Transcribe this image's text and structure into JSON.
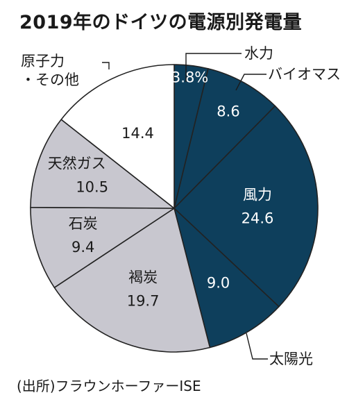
{
  "title": "2019年のドイツの電源別発電量",
  "source": "(出所)フラウンホーファーISE",
  "colors": {
    "renewable": "#0e3f5c",
    "fossil": "#c8c7cf",
    "nuclear": "#ffffff",
    "outline": "#222222"
  },
  "chart_data": {
    "type": "pie",
    "unit": "%",
    "start_angle": 0,
    "direction": "clockwise",
    "slices": [
      {
        "label": "水力",
        "value": 3.8,
        "display": "3.8%",
        "group": "renewable"
      },
      {
        "label": "バイオマス",
        "value": 8.6,
        "display": "8.6",
        "group": "renewable"
      },
      {
        "label": "風力",
        "value": 24.6,
        "display": "24.6",
        "group": "renewable"
      },
      {
        "label": "太陽光",
        "value": 9.0,
        "display": "9.0",
        "group": "renewable"
      },
      {
        "label": "褐炭",
        "value": 19.7,
        "display": "19.7",
        "group": "fossil"
      },
      {
        "label": "石炭",
        "value": 9.4,
        "display": "9.4",
        "group": "fossil"
      },
      {
        "label": "天然ガス",
        "value": 10.5,
        "display": "10.5",
        "group": "fossil"
      },
      {
        "label": "原子力・その他",
        "value": 14.4,
        "display": "14.4",
        "group": "nuclear"
      }
    ]
  }
}
